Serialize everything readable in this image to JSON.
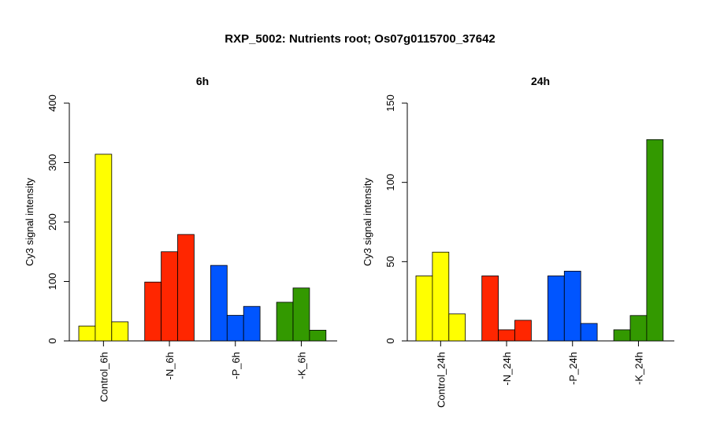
{
  "figure": {
    "title": "RXP_5002: Nutrients root; Os07g0115700_37642"
  },
  "chart_data": [
    {
      "type": "bar",
      "title": "6h",
      "ylabel": "Cy3 signal intensity",
      "xlabel": "",
      "ylim": [
        0,
        400
      ],
      "yticks": [
        "0",
        "100",
        "200",
        "300",
        "400"
      ],
      "groups": [
        {
          "label": "Control_6h",
          "color": "#ffff00",
          "values": [
            25,
            314,
            32
          ]
        },
        {
          "label": "-N_6h",
          "color": "#ff2600",
          "values": [
            99,
            150,
            179
          ]
        },
        {
          "label": "-P_6h",
          "color": "#0055ff",
          "values": [
            127,
            43,
            58
          ]
        },
        {
          "label": "-K_6h",
          "color": "#339900",
          "values": [
            65,
            89,
            18
          ]
        }
      ],
      "grid": false,
      "legend": "none"
    },
    {
      "type": "bar",
      "title": "24h",
      "ylabel": "Cy3 signal intensity",
      "xlabel": "",
      "ylim": [
        0,
        150
      ],
      "yticks": [
        "0",
        "50",
        "100",
        "150"
      ],
      "groups": [
        {
          "label": "Control_24h",
          "color": "#ffff00",
          "values": [
            41,
            56,
            17
          ]
        },
        {
          "label": "-N_24h",
          "color": "#ff2600",
          "values": [
            41,
            7,
            13
          ]
        },
        {
          "label": "-P_24h",
          "color": "#0055ff",
          "values": [
            41,
            44,
            11
          ]
        },
        {
          "label": "-K_24h",
          "color": "#339900",
          "values": [
            7,
            16,
            127
          ]
        }
      ],
      "grid": false,
      "legend": "none"
    }
  ]
}
